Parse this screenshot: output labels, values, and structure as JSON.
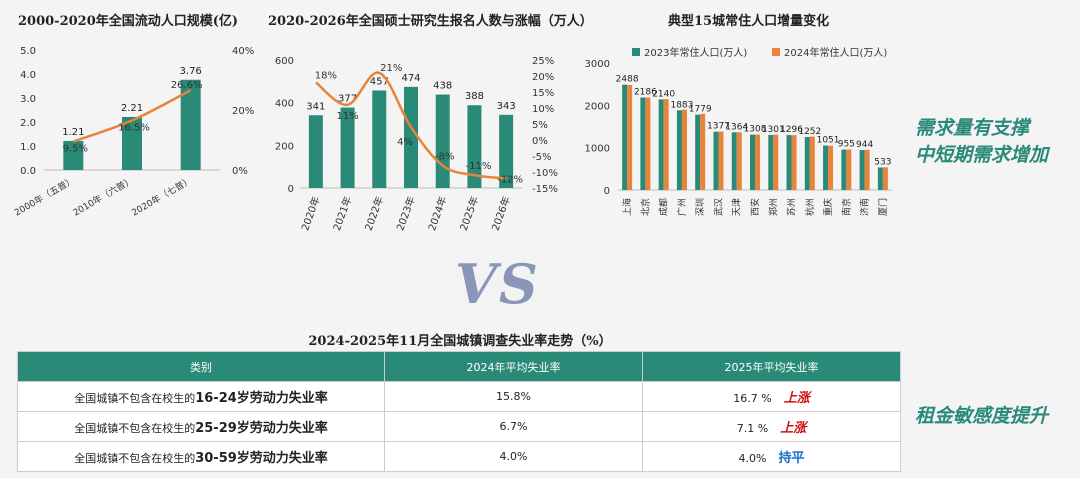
{
  "charts": [
    {
      "title": "2000-2020年全国流动人口规模(亿)",
      "chart_data": {
        "type": "bar",
        "categories": [
          "2000年（五普）",
          "2010年（六普）",
          "2020年（七普）"
        ],
        "values": [
          1.21,
          2.21,
          3.76
        ],
        "value_labels": [
          "1.21",
          "2.21",
          "3.76"
        ],
        "line_values": [
          9.5,
          16.5,
          26.6
        ],
        "line_labels": [
          "9.5%",
          "16.5%",
          "26.6%"
        ],
        "y_ticks": [
          "0.0",
          "1.0",
          "2.0",
          "3.0",
          "4.0",
          "5.0"
        ],
        "y2_ticks": [
          "0%",
          "20%",
          "40%"
        ],
        "ylim": [
          0,
          5
        ],
        "y2lim": [
          0,
          40
        ],
        "bar_color": "#2a8a78",
        "line_color": "#e8833a"
      }
    },
    {
      "title": "2020-2026年全国硕士研究生报名人数与涨幅（万人）",
      "chart_data": {
        "type": "bar",
        "categories": [
          "2020年",
          "2021年",
          "2022年",
          "2023年",
          "2024年",
          "2025年",
          "2026年"
        ],
        "values": [
          341,
          377,
          457,
          474,
          438,
          388,
          343
        ],
        "value_labels": [
          "341",
          "377",
          "457",
          "474",
          "438",
          "388",
          "343"
        ],
        "line_values": [
          18,
          11,
          21,
          4,
          -8,
          -11,
          -12
        ],
        "line_labels": [
          "18%",
          "11%",
          "21%",
          "4%",
          "-8%",
          "-11%",
          "-12%"
        ],
        "y_ticks": [
          "0",
          "200",
          "400",
          "600"
        ],
        "y2_ticks": [
          "25%",
          "20%",
          "15%",
          "10%",
          "5%",
          "0%",
          "-5%",
          "-10%",
          "-15%"
        ],
        "ylim": [
          0,
          600
        ],
        "y2lim": [
          -15,
          25
        ],
        "bar_color": "#2a8a78",
        "line_color": "#e8833a"
      }
    },
    {
      "title": "典型15城常住人口增量变化",
      "chart_data": {
        "type": "bar",
        "categories": [
          "上海",
          "北京",
          "成都",
          "广州",
          "深圳",
          "武汉",
          "天津",
          "西安",
          "郑州",
          "苏州",
          "杭州",
          "重庆",
          "南京",
          "济南",
          "厦门"
        ],
        "series": [
          {
            "name": "2023年常住人口(万人)",
            "values": [
              2488,
              2186,
              2140,
              1883,
              1779,
              1377,
              1364,
              1308,
              1301,
              1296,
              1252,
              1051,
              955,
              944,
              533
            ]
          },
          {
            "name": "2024年常住人口(万人)",
            "values": [
              2480,
              2183,
              2147,
              1898,
              1799,
              1380,
              1364,
              1311,
              1308,
              1295,
              1262,
              1045,
              957,
              950,
              535
            ]
          }
        ],
        "value_labels": [
          "2488",
          "2186",
          "2140",
          "1883",
          "1779",
          "1377",
          "1364",
          "1308",
          "1301",
          "1296",
          "1252",
          "1051",
          "955",
          "944",
          "533"
        ],
        "y_ticks": [
          "0",
          "1000",
          "2000",
          "3000"
        ],
        "ylim": [
          0,
          3000
        ],
        "colors": [
          "#2a8a78",
          "#e8833a"
        ]
      }
    }
  ],
  "vs_text": "VS",
  "slogans": {
    "top": [
      "需求量有支撑",
      "中短期需求增加"
    ],
    "bottom": "租金敏感度提升"
  },
  "table": {
    "title": "2024-2025年11月全国城镇调查失业率走势（%）",
    "headers": [
      "类别",
      "2024年平均失业率",
      "2025年平均失业率"
    ],
    "rows": [
      {
        "prefix": "全国城镇不包含在校生的",
        "highlight": "16-24岁劳动力失业率",
        "v2024": "15.8%",
        "v2025": "16.7 %",
        "status": "上涨",
        "status_type": "up"
      },
      {
        "prefix": "全国城镇不包含在校生的",
        "highlight": "25-29岁劳动力失业率",
        "v2024": "6.7%",
        "v2025": "7.1 %",
        "status": "上涨",
        "status_type": "up"
      },
      {
        "prefix": "全国城镇不包含在校生的",
        "highlight": "30-59岁劳动力失业率",
        "v2024": "4.0%",
        "v2025": "4.0%",
        "status": "持平",
        "status_type": "flat"
      }
    ]
  }
}
